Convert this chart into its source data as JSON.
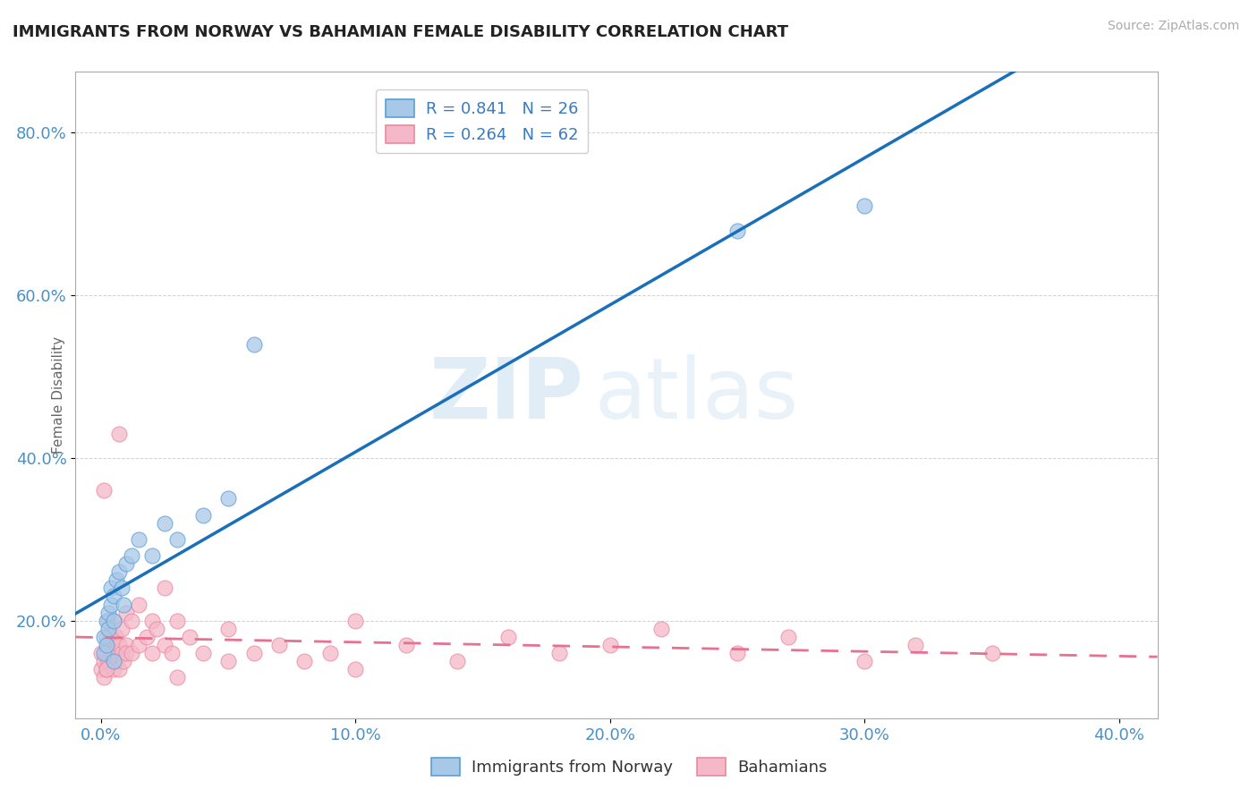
{
  "title": "IMMIGRANTS FROM NORWAY VS BAHAMIAN FEMALE DISABILITY CORRELATION CHART",
  "source": "Source: ZipAtlas.com",
  "xlabel_ticks": [
    "0.0%",
    "10.0%",
    "20.0%",
    "30.0%",
    "40.0%"
  ],
  "xlabel_vals": [
    0.0,
    0.1,
    0.2,
    0.3,
    0.4
  ],
  "ylabel_ticks": [
    "20.0%",
    "40.0%",
    "60.0%",
    "80.0%"
  ],
  "ylabel_vals": [
    0.2,
    0.4,
    0.6,
    0.8
  ],
  "legend_r1": "R = 0.841   N = 26",
  "legend_r2": "R = 0.264   N = 62",
  "series1_label": "Immigrants from Norway",
  "series2_label": "Bahamians",
  "series1_color": "#a8c8e8",
  "series2_color": "#f4b8c8",
  "series1_edge": "#5a9fd4",
  "series2_edge": "#e88aa0",
  "trend1_color": "#1a6fba",
  "trend2_color": "#e87090",
  "watermark_zip": "ZIP",
  "watermark_atlas": "atlas",
  "norway_x": [
    0.001,
    0.001,
    0.002,
    0.002,
    0.003,
    0.003,
    0.004,
    0.004,
    0.005,
    0.005,
    0.006,
    0.007,
    0.008,
    0.009,
    0.01,
    0.012,
    0.015,
    0.02,
    0.025,
    0.03,
    0.04,
    0.05,
    0.06,
    0.25,
    0.3,
    0.005
  ],
  "norway_y": [
    0.16,
    0.18,
    0.17,
    0.2,
    0.19,
    0.21,
    0.22,
    0.24,
    0.23,
    0.2,
    0.25,
    0.26,
    0.24,
    0.22,
    0.27,
    0.28,
    0.3,
    0.28,
    0.32,
    0.3,
    0.33,
    0.35,
    0.54,
    0.68,
    0.71,
    0.15
  ],
  "bahamian_x": [
    0.0,
    0.0,
    0.001,
    0.001,
    0.001,
    0.002,
    0.002,
    0.002,
    0.003,
    0.003,
    0.003,
    0.004,
    0.004,
    0.005,
    0.005,
    0.005,
    0.006,
    0.006,
    0.007,
    0.007,
    0.008,
    0.008,
    0.009,
    0.01,
    0.01,
    0.01,
    0.012,
    0.012,
    0.015,
    0.015,
    0.018,
    0.02,
    0.02,
    0.022,
    0.025,
    0.025,
    0.028,
    0.03,
    0.035,
    0.04,
    0.05,
    0.06,
    0.07,
    0.08,
    0.09,
    0.1,
    0.12,
    0.14,
    0.16,
    0.18,
    0.2,
    0.22,
    0.25,
    0.27,
    0.3,
    0.32,
    0.35,
    0.1,
    0.05,
    0.03,
    0.007,
    0.002
  ],
  "bahamian_y": [
    0.14,
    0.16,
    0.36,
    0.15,
    0.13,
    0.14,
    0.16,
    0.18,
    0.15,
    0.17,
    0.2,
    0.16,
    0.18,
    0.14,
    0.16,
    0.2,
    0.15,
    0.18,
    0.14,
    0.17,
    0.16,
    0.19,
    0.15,
    0.17,
    0.16,
    0.21,
    0.16,
    0.2,
    0.17,
    0.22,
    0.18,
    0.16,
    0.2,
    0.19,
    0.24,
    0.17,
    0.16,
    0.2,
    0.18,
    0.16,
    0.19,
    0.16,
    0.17,
    0.15,
    0.16,
    0.2,
    0.17,
    0.15,
    0.18,
    0.16,
    0.17,
    0.19,
    0.16,
    0.18,
    0.15,
    0.17,
    0.16,
    0.14,
    0.15,
    0.13,
    0.43,
    0.14
  ],
  "xlim": [
    -0.01,
    0.415
  ],
  "ylim": [
    0.08,
    0.875
  ],
  "figsize": [
    14.06,
    8.92
  ],
  "dpi": 100
}
